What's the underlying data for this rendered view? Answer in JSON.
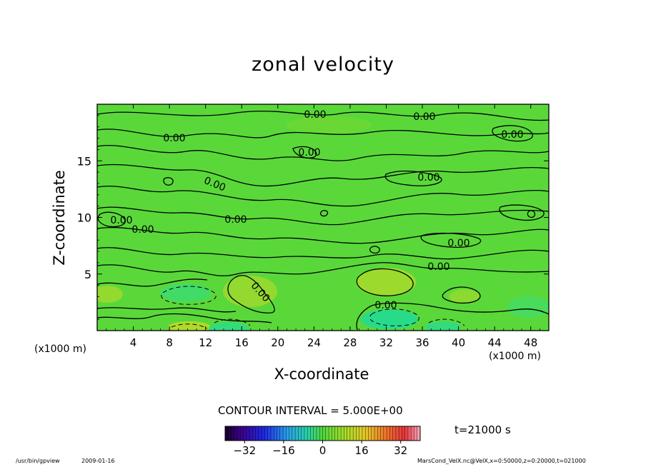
{
  "chart_data": {
    "type": "heatmap",
    "title": "zonal velocity",
    "xlabel": "X-coordinate",
    "ylabel": "Z-coordinate",
    "x_unit_label": "(x1000 m)",
    "xlim": [
      0,
      50
    ],
    "ylim": [
      0,
      20
    ],
    "x_ticks": [
      "4",
      "8",
      "12",
      "16",
      "20",
      "24",
      "28",
      "32",
      "36",
      "40",
      "44",
      "48"
    ],
    "y_ticks": [
      "5",
      "10",
      "15"
    ],
    "contour_interval_text": "CONTOUR INTERVAL = 5.000E+00",
    "contour_label": "0.00",
    "colorbar": {
      "ticks": [
        "−32",
        "−16",
        "0",
        "16",
        "32"
      ],
      "range": [
        -40,
        40
      ]
    },
    "time_text": "t=21000 s"
  },
  "footer": {
    "path": "/usr/bin/gpview",
    "date": "2009-01-16",
    "info": "MarsCond_VelX.nc@VelX,x=0:50000,z=0:20000,t=021000"
  },
  "colors": {
    "field_base": "#5ad83a",
    "field_light": "#9adc2e",
    "field_cool": "#1fdc9a",
    "contour": "#000000"
  }
}
